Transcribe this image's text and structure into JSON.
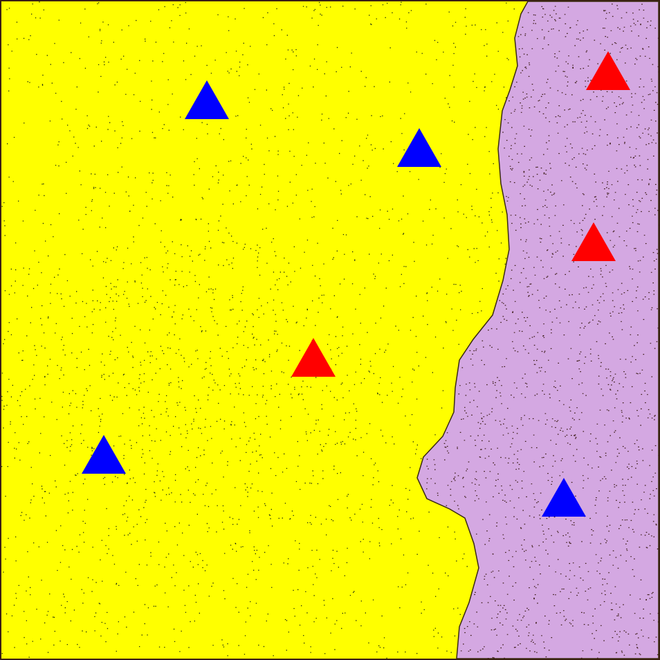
{
  "regions": [
    {
      "name": "left-region",
      "color": "#ffff00",
      "speckle_color": "#1a2a10"
    },
    {
      "name": "right-region",
      "color": "#d4a8e2",
      "speckle_color": "#3a1a14"
    }
  ],
  "border_color": "#3a1f12",
  "markers": [
    {
      "id": "blue-1",
      "color": "blue",
      "fill": "#0000ff",
      "region": "left"
    },
    {
      "id": "blue-2",
      "color": "blue",
      "fill": "#0000ff",
      "region": "left"
    },
    {
      "id": "red-1",
      "color": "red",
      "fill": "#ff0000",
      "region": "left"
    },
    {
      "id": "blue-3",
      "color": "blue",
      "fill": "#0000ff",
      "region": "left"
    },
    {
      "id": "red-2",
      "color": "red",
      "fill": "#ff0000",
      "region": "right"
    },
    {
      "id": "red-3",
      "color": "red",
      "fill": "#ff0000",
      "region": "right"
    },
    {
      "id": "blue-4",
      "color": "blue",
      "fill": "#0000ff",
      "region": "right"
    }
  ]
}
